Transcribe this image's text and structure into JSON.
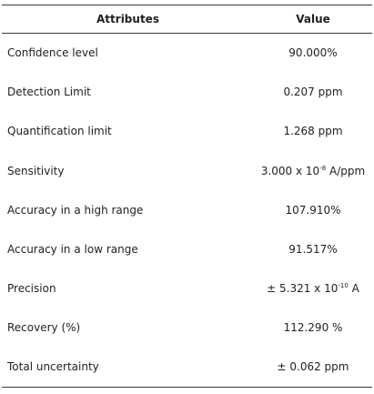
{
  "table": {
    "headers": {
      "attribute": "Attributes",
      "value": "Value"
    },
    "rows": [
      {
        "attribute": "Confidence level",
        "value": "90.000%"
      },
      {
        "attribute": "Detection Limit",
        "value": "0.207 ppm"
      },
      {
        "attribute": "Quantification limit",
        "value": "1.268 ppm"
      },
      {
        "attribute": "Sensitivity",
        "value_prefix": "3.000 x 10",
        "value_exp": "-8",
        "value_suffix": " A/ppm"
      },
      {
        "attribute": "Accuracy in a high range",
        "value": "107.910%"
      },
      {
        "attribute": "Accuracy in a low range",
        "value": "91.517%"
      },
      {
        "attribute": "Precision",
        "value_prefix": "± 5.321 x 10",
        "value_exp": "-10",
        "value_suffix": " A"
      },
      {
        "attribute": "Recovery (%)",
        "value": "112.290 %"
      },
      {
        "attribute": "Total uncertainty",
        "value": "± 0.062 ppm"
      }
    ]
  }
}
